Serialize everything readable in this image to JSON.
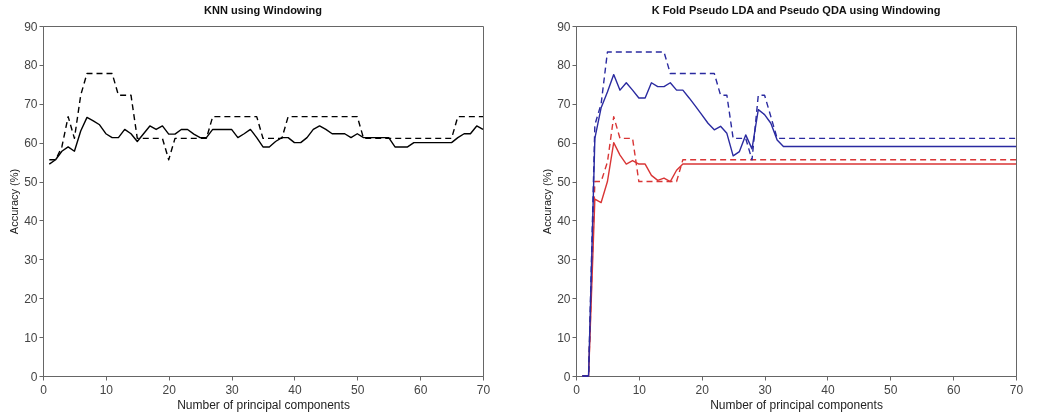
{
  "chart_data": [
    {
      "type": "line",
      "title": "KNN using Windowing",
      "xlabel": "Number of principal components",
      "ylabel": "Accuracy (%)",
      "xlim": [
        0,
        70
      ],
      "xticks": [
        0,
        10,
        20,
        30,
        40,
        50,
        60,
        70
      ],
      "ylim": [
        0,
        90
      ],
      "yticks": [
        0,
        10,
        20,
        30,
        40,
        50,
        60,
        70,
        80,
        90
      ],
      "x": [
        1,
        2,
        3,
        4,
        5,
        6,
        7,
        8,
        9,
        10,
        11,
        12,
        13,
        14,
        15,
        16,
        17,
        18,
        19,
        20,
        21,
        22,
        23,
        24,
        25,
        26,
        27,
        28,
        29,
        30,
        31,
        32,
        33,
        34,
        35,
        36,
        37,
        38,
        39,
        40,
        41,
        42,
        43,
        44,
        45,
        46,
        47,
        48,
        49,
        50,
        51,
        52,
        53,
        54,
        55,
        56,
        57,
        58,
        59,
        60,
        61,
        62,
        63,
        64,
        65,
        66,
        67,
        68,
        69,
        70
      ],
      "series": [
        {
          "color": "#000000",
          "line_style": "solid",
          "values": [
            54.5,
            55.6,
            57.8,
            58.9,
            57.8,
            63,
            66.5,
            65.6,
            64.6,
            62.3,
            61.3,
            61.3,
            63.4,
            62.3,
            60.3,
            62.3,
            64.3,
            63.4,
            64.3,
            62.2,
            62.2,
            63.4,
            63.4,
            62.2,
            61.3,
            61.3,
            63.4,
            63.4,
            63.4,
            63.4,
            61.3,
            62.3,
            63.4,
            61.3,
            58.9,
            58.9,
            60.3,
            61.3,
            61.3,
            60,
            60,
            61.3,
            63.4,
            64.3,
            63.4,
            62.3,
            62.3,
            62.3,
            61.3,
            62.3,
            61.3,
            61.3,
            61.3,
            61.3,
            61.3,
            58.9,
            58.9,
            58.9,
            60,
            60,
            60,
            60,
            60,
            60,
            60,
            61.3,
            62.3,
            62.3,
            64.3,
            63.4
          ]
        },
        {
          "color": "#000000",
          "line_style": "dashed",
          "values": [
            55.6,
            55.6,
            58.9,
            66.7,
            61.1,
            72.2,
            77.8,
            77.8,
            77.8,
            77.8,
            77.8,
            72.2,
            72.2,
            72.2,
            61.1,
            61.1,
            61.1,
            61.1,
            61.1,
            55.6,
            61.1,
            61.1,
            61.1,
            61.1,
            61.1,
            61.1,
            66.7,
            66.7,
            66.7,
            66.7,
            66.7,
            66.7,
            66.7,
            66.7,
            61.1,
            61.1,
            61.1,
            61.1,
            66.7,
            66.7,
            66.7,
            66.7,
            66.7,
            66.7,
            66.7,
            66.7,
            66.7,
            66.7,
            66.7,
            66.7,
            61.1,
            61.1,
            61.1,
            61.1,
            61.1,
            61.1,
            61.1,
            61.1,
            61.1,
            61.1,
            61.1,
            61.1,
            61.1,
            61.1,
            61.1,
            66.7,
            66.7,
            66.7,
            66.7,
            66.7
          ]
        }
      ]
    },
    {
      "type": "line",
      "title": "K Fold Pseudo LDA and Pseudo QDA using Windowing",
      "xlabel": "Number of principal components",
      "ylabel": "Accuracy (%)",
      "xlim": [
        0,
        70
      ],
      "xticks": [
        0,
        10,
        20,
        30,
        40,
        50,
        60,
        70
      ],
      "ylim": [
        0,
        90
      ],
      "yticks": [
        0,
        10,
        20,
        30,
        40,
        50,
        60,
        70,
        80,
        90
      ],
      "x": [
        1,
        2,
        3,
        4,
        5,
        6,
        7,
        8,
        9,
        10,
        11,
        12,
        13,
        14,
        15,
        16,
        17,
        18,
        19,
        20,
        21,
        22,
        23,
        24,
        25,
        26,
        27,
        28,
        29,
        30,
        31,
        32,
        33,
        34,
        35,
        36,
        37,
        38,
        39,
        40,
        41,
        42,
        43,
        44,
        45,
        46,
        47,
        48,
        49,
        50,
        51,
        52,
        53,
        54,
        55,
        56,
        57,
        58,
        59,
        60,
        61,
        62,
        63,
        64,
        65,
        66,
        67,
        68,
        69,
        70
      ],
      "series": [
        {
          "color": "#d93636",
          "line_style": "solid",
          "values": [
            0,
            0,
            45.5,
            44.6,
            50,
            60,
            56.8,
            54.5,
            55.4,
            54.5,
            54.5,
            51.6,
            50.3,
            50.9,
            50,
            52.9,
            54.5,
            54.5,
            54.5,
            54.5,
            54.5,
            54.5,
            54.5,
            54.5,
            54.5,
            54.5,
            54.5,
            54.5,
            54.5,
            54.5,
            54.5,
            54.5,
            54.5,
            54.5,
            54.5,
            54.5,
            54.5,
            54.5,
            54.5,
            54.5,
            54.5,
            54.5,
            54.5,
            54.5,
            54.5,
            54.5,
            54.5,
            54.5,
            54.5,
            54.5,
            54.5,
            54.5,
            54.5,
            54.5,
            54.5,
            54.5,
            54.5,
            54.5,
            54.5,
            54.5,
            54.5,
            54.5,
            54.5,
            54.5,
            54.5,
            54.5,
            54.5,
            54.5,
            54.5,
            54.5
          ]
        },
        {
          "color": "#d93636",
          "line_style": "dashed",
          "values": [
            0,
            0,
            50,
            50,
            55,
            66.7,
            61.1,
            61.1,
            61.1,
            50,
            50,
            50,
            50,
            50,
            50,
            50,
            55.6,
            55.6,
            55.6,
            55.6,
            55.6,
            55.6,
            55.6,
            55.6,
            55.6,
            55.6,
            55.6,
            55.6,
            55.6,
            55.6,
            55.6,
            55.6,
            55.6,
            55.6,
            55.6,
            55.6,
            55.6,
            55.6,
            55.6,
            55.6,
            55.6,
            55.6,
            55.6,
            55.6,
            55.6,
            55.6,
            55.6,
            55.6,
            55.6,
            55.6,
            55.6,
            55.6,
            55.6,
            55.6,
            55.6,
            55.6,
            55.6,
            55.6,
            55.6,
            55.6,
            55.6,
            55.6,
            55.6,
            55.6,
            55.6,
            55.6,
            55.6,
            55.6,
            55.6,
            55.6
          ]
        },
        {
          "color": "#2a2aa0",
          "line_style": "solid",
          "values": [
            0,
            0,
            61.1,
            69,
            73,
            77.5,
            73.5,
            75.4,
            73.5,
            71.5,
            71.5,
            75.4,
            74.4,
            74.4,
            75.4,
            73.5,
            73.5,
            71.5,
            69.4,
            67.2,
            65,
            63.3,
            64.2,
            62.4,
            56.6,
            57.7,
            62,
            58.4,
            68.5,
            67.2,
            65,
            60.7,
            59,
            59,
            59,
            59,
            59,
            59,
            59,
            59,
            59,
            59,
            59,
            59,
            59,
            59,
            59,
            59,
            59,
            59,
            59,
            59,
            59,
            59,
            59,
            59,
            59,
            59,
            59,
            59,
            59,
            59,
            59,
            59,
            59,
            59,
            59,
            59,
            59,
            59
          ]
        },
        {
          "color": "#2a2aa0",
          "line_style": "dashed",
          "values": [
            0,
            0,
            64.6,
            70,
            83.3,
            83.3,
            83.3,
            83.3,
            83.3,
            83.3,
            83.3,
            83.3,
            83.3,
            83.3,
            77.8,
            77.8,
            77.8,
            77.8,
            77.8,
            77.8,
            77.8,
            77.8,
            72.2,
            72.2,
            61.1,
            61.1,
            61.1,
            55.6,
            72.2,
            72.2,
            66.7,
            61.1,
            61.1,
            61.1,
            61.1,
            61.1,
            61.1,
            61.1,
            61.1,
            61.1,
            61.1,
            61.1,
            61.1,
            61.1,
            61.1,
            61.1,
            61.1,
            61.1,
            61.1,
            61.1,
            61.1,
            61.1,
            61.1,
            61.1,
            61.1,
            61.1,
            61.1,
            61.1,
            61.1,
            61.1,
            61.1,
            61.1,
            61.1,
            61.1,
            61.1,
            61.1,
            61.1,
            61.1,
            61.1,
            61.1
          ]
        }
      ]
    }
  ]
}
